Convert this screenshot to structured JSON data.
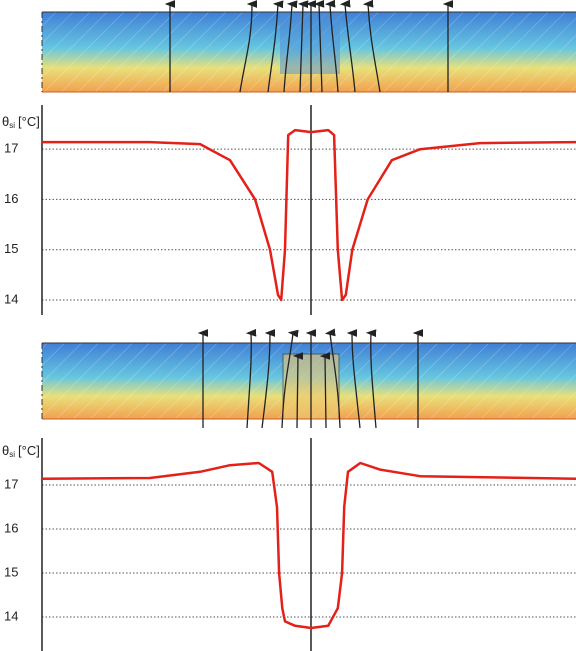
{
  "chart_data": [
    {
      "type": "line",
      "ylabel": {
        "symbol": "θ",
        "subscript": "si",
        "unit": "[°C]"
      },
      "xlim": [
        0,
        100
      ],
      "ylim": [
        13.9,
        17.6
      ],
      "yticks": [
        14,
        15,
        16,
        17
      ],
      "grid": true,
      "series": [
        {
          "color": "#e32119",
          "x": [
            0,
            20.2,
            29.6,
            35.2,
            39.9,
            42.7,
            44.2,
            44.8,
            45.5,
            46.1,
            47.4,
            50.4,
            53.6,
            54.7,
            55.4,
            56.2,
            56.9,
            58.1,
            61.0,
            65.5,
            70.8,
            82,
            100
          ],
          "values": [
            17.14,
            17.14,
            17.1,
            16.78,
            16.0,
            15.0,
            14.1,
            14.0,
            15.0,
            17.28,
            17.38,
            17.34,
            17.38,
            17.28,
            15.0,
            14.0,
            14.1,
            15.0,
            16.0,
            16.78,
            17.0,
            17.12,
            17.14
          ]
        }
      ]
    },
    {
      "type": "line",
      "ylabel": {
        "symbol": "θ",
        "subscript": "si",
        "unit": "[°C]"
      },
      "xlim": [
        0,
        100
      ],
      "ylim": [
        13.65,
        17.85
      ],
      "yticks": [
        14,
        15,
        16,
        17
      ],
      "grid": true,
      "series": [
        {
          "color": "#e32119",
          "x": [
            0,
            20.2,
            29.6,
            35.2,
            40.6,
            43.1,
            44.0,
            44.4,
            45.0,
            45.5,
            47.4,
            50.4,
            53.6,
            55.4,
            56.2,
            56.6,
            57.3,
            59.6,
            63.3,
            70.8,
            100
          ],
          "values": [
            17.14,
            17.16,
            17.3,
            17.45,
            17.5,
            17.3,
            16.5,
            15.0,
            14.2,
            13.9,
            13.8,
            13.75,
            13.8,
            14.2,
            15.0,
            16.5,
            17.3,
            17.5,
            17.35,
            17.2,
            17.14
          ]
        }
      ]
    }
  ]
}
